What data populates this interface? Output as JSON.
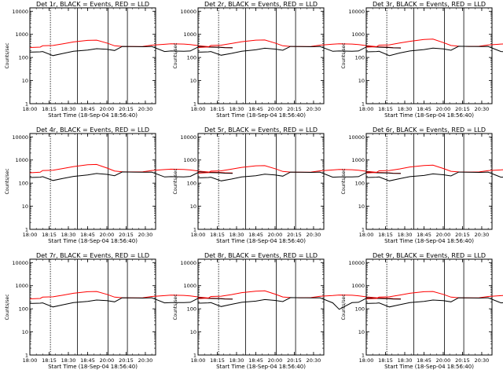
{
  "chart_data": {
    "type": "line",
    "layout": "3x3 grid",
    "xlim": [
      "18:00",
      "20:38"
    ],
    "ylim": [
      1,
      14000
    ],
    "yscale": "log",
    "xticks": [
      "18:00",
      "18:15",
      "18:30",
      "18:45",
      "20:00",
      "20:15",
      "20:30"
    ],
    "yticks": [
      "1",
      "10",
      "100",
      "1000",
      "10000"
    ],
    "ylabel": "Counts/sec",
    "xlabel": "Start Time (18-Sep-04 18:56:40)",
    "grid": false,
    "series_colors": {
      "events": "#000000",
      "lld": "#ff0000"
    },
    "x_minutes": [
      0,
      8,
      10,
      18,
      26,
      34,
      45,
      52,
      60,
      66,
      72,
      80,
      88,
      95,
      105,
      110,
      120,
      125,
      132,
      140,
      148,
      152,
      158
    ],
    "vertical_markers": [
      "18:16",
      "18:37",
      "20:01",
      "20:16"
    ],
    "marker_style": [
      "dashed",
      "solid",
      "solid",
      "solid"
    ],
    "plots": [
      {
        "title": "Det 1r, BLACK = Events, RED = LLD",
        "events": [
          170,
          175,
          180,
          120,
          150,
          185,
          210,
          240,
          225,
          200,
          300,
          295,
          290,
          300,
          180,
          190,
          185,
          190,
          300,
          280,
          275,
          265,
          260
        ],
        "lld": [
          270,
          280,
          320,
          330,
          390,
          470,
          550,
          560,
          420,
          320,
          300,
          295,
          300,
          340,
          370,
          390,
          380,
          360,
          320,
          290,
          280,
          270,
          265
        ]
      },
      {
        "title": "Det 2r, BLACK = Events, RED = LLD",
        "events": [
          170,
          175,
          180,
          125,
          150,
          185,
          215,
          250,
          230,
          205,
          300,
          295,
          290,
          300,
          185,
          190,
          185,
          190,
          300,
          280,
          270,
          260,
          255
        ],
        "lld": [
          270,
          285,
          330,
          340,
          400,
          480,
          560,
          570,
          420,
          320,
          300,
          295,
          300,
          340,
          375,
          390,
          380,
          360,
          320,
          290,
          280,
          265,
          260
        ]
      },
      {
        "title": "Det 3r, BLACK = Events, RED = LLD",
        "events": [
          175,
          180,
          185,
          120,
          155,
          190,
          220,
          255,
          235,
          205,
          305,
          300,
          295,
          300,
          180,
          175,
          185,
          190,
          300,
          280,
          275,
          265,
          260
        ],
        "lld": [
          280,
          290,
          340,
          350,
          420,
          500,
          600,
          620,
          440,
          330,
          305,
          300,
          305,
          345,
          380,
          395,
          385,
          365,
          325,
          295,
          285,
          275,
          270
        ]
      },
      {
        "title": "Det 4r, BLACK = Events, RED = LLD",
        "events": [
          175,
          180,
          190,
          130,
          160,
          195,
          225,
          260,
          240,
          210,
          305,
          300,
          295,
          300,
          185,
          190,
          185,
          195,
          305,
          285,
          280,
          270,
          265
        ],
        "lld": [
          280,
          295,
          350,
          360,
          430,
          520,
          620,
          640,
          450,
          335,
          310,
          305,
          310,
          350,
          385,
          400,
          390,
          370,
          330,
          300,
          290,
          280,
          275
        ]
      },
      {
        "title": "Det 5r, BLACK = Events, RED = LLD",
        "events": [
          170,
          175,
          180,
          125,
          150,
          185,
          210,
          245,
          225,
          200,
          300,
          295,
          290,
          300,
          180,
          185,
          185,
          190,
          300,
          280,
          275,
          265,
          260
        ],
        "lld": [
          270,
          285,
          330,
          340,
          400,
          480,
          560,
          570,
          420,
          320,
          300,
          295,
          300,
          340,
          370,
          390,
          380,
          360,
          320,
          290,
          280,
          270,
          265
        ]
      },
      {
        "title": "Det 6r, BLACK = Events, RED = LLD",
        "events": [
          175,
          180,
          185,
          125,
          155,
          190,
          215,
          250,
          230,
          205,
          300,
          295,
          290,
          300,
          180,
          185,
          185,
          190,
          300,
          280,
          275,
          265,
          260
        ],
        "lld": [
          275,
          290,
          340,
          350,
          410,
          500,
          580,
          600,
          430,
          325,
          305,
          300,
          305,
          345,
          375,
          395,
          385,
          365,
          325,
          295,
          285,
          275,
          270
        ]
      },
      {
        "title": "Det 7r, BLACK = Events, RED = LLD",
        "events": [
          170,
          175,
          180,
          120,
          150,
          185,
          210,
          240,
          225,
          200,
          300,
          295,
          290,
          300,
          180,
          185,
          185,
          190,
          300,
          280,
          275,
          265,
          260
        ],
        "lld": [
          270,
          280,
          320,
          330,
          390,
          470,
          550,
          560,
          420,
          320,
          300,
          295,
          300,
          340,
          370,
          390,
          380,
          360,
          320,
          290,
          280,
          270,
          265
        ]
      },
      {
        "title": "Det 8r, BLACK = Events, RED = LLD",
        "events": [
          175,
          180,
          185,
          125,
          155,
          190,
          215,
          250,
          230,
          205,
          305,
          300,
          295,
          300,
          180,
          95,
          185,
          190,
          300,
          280,
          275,
          265,
          260
        ],
        "lld": [
          275,
          290,
          340,
          350,
          410,
          500,
          580,
          600,
          430,
          325,
          305,
          300,
          305,
          345,
          375,
          395,
          385,
          365,
          325,
          295,
          285,
          275,
          270
        ]
      },
      {
        "title": "Det 9r, BLACK = Events, RED = LLD",
        "events": [
          170,
          175,
          180,
          120,
          150,
          185,
          210,
          240,
          225,
          200,
          300,
          295,
          290,
          300,
          180,
          185,
          185,
          190,
          300,
          280,
          275,
          265,
          260
        ],
        "lld": [
          270,
          280,
          320,
          330,
          390,
          470,
          550,
          560,
          420,
          320,
          300,
          295,
          300,
          340,
          370,
          390,
          380,
          360,
          320,
          290,
          280,
          270,
          265
        ]
      }
    ]
  }
}
